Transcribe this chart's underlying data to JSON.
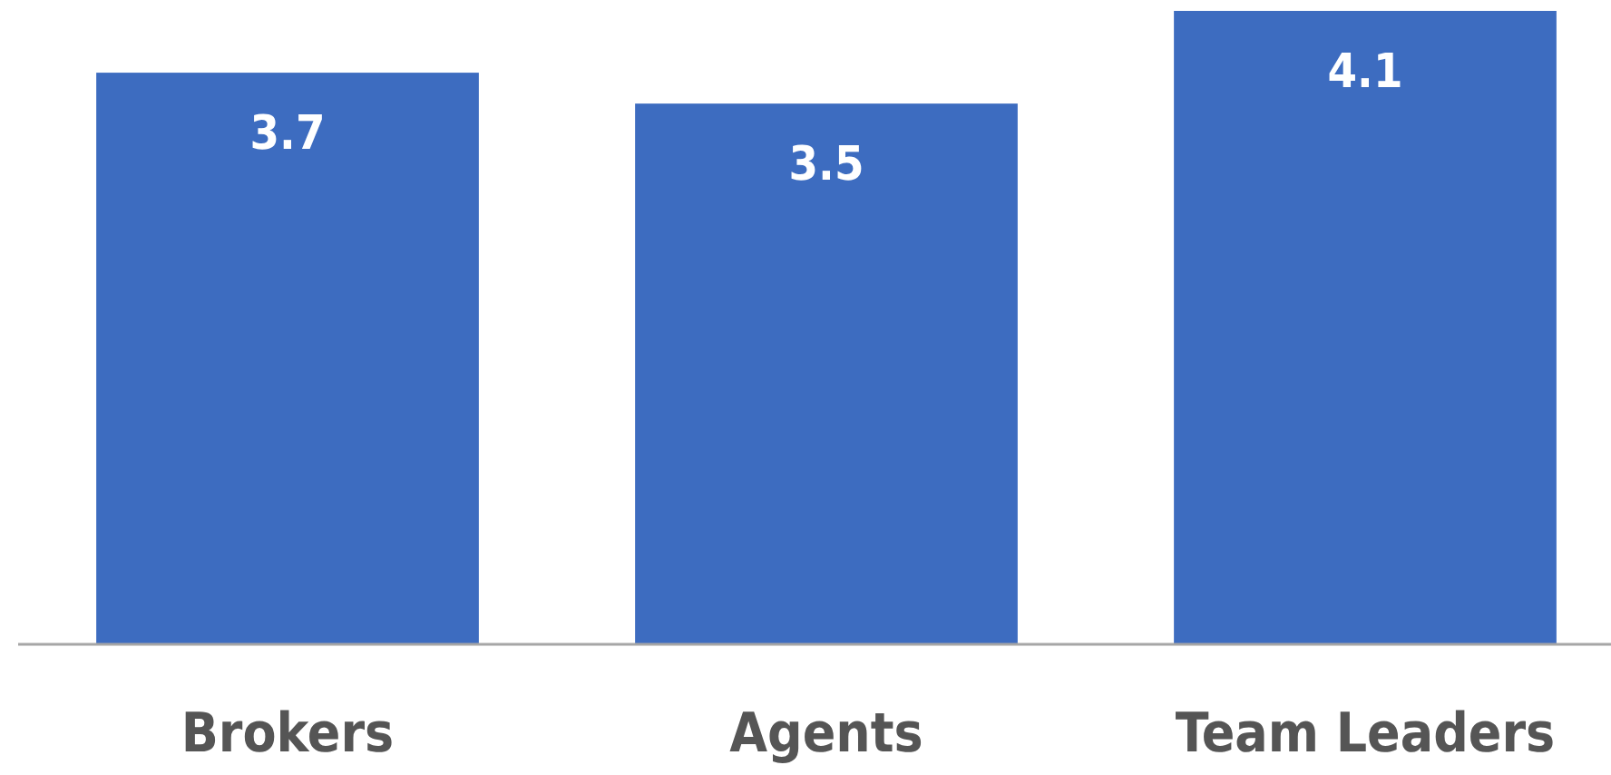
{
  "chart_data": {
    "type": "bar",
    "categories": [
      "Brokers",
      "Agents",
      "Team Leaders"
    ],
    "values": [
      3.7,
      3.5,
      4.1
    ],
    "color": "#3d6cc0",
    "data_labels": true
  }
}
